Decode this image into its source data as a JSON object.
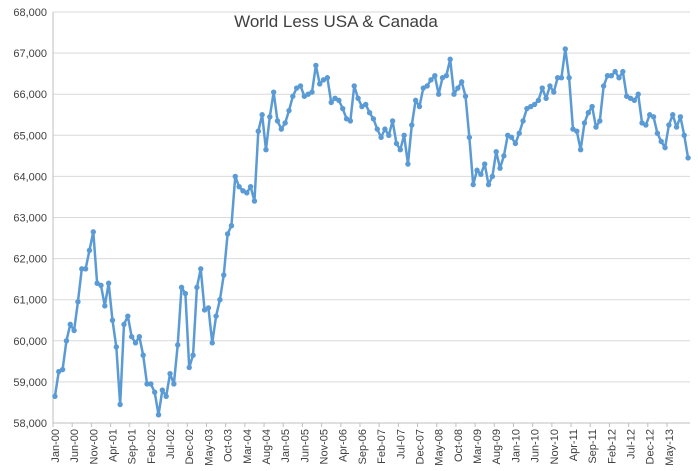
{
  "chart_data": {
    "type": "line",
    "title": "World Less USA & Canada",
    "xlabel": "",
    "ylabel": "",
    "ylim": [
      58000,
      68000
    ],
    "y_ticks": [
      58000,
      59000,
      60000,
      61000,
      62000,
      63000,
      64000,
      65000,
      66000,
      67000,
      68000
    ],
    "y_tick_labels": [
      "58,000",
      "59,000",
      "60,000",
      "61,000",
      "62,000",
      "63,000",
      "64,000",
      "65,000",
      "66,000",
      "67,000",
      "68,000"
    ],
    "x_tick_labels": [
      "Jan-00",
      "Jun-00",
      "Nov-00",
      "Apr-01",
      "Sep-01",
      "Feb-02",
      "Jul-02",
      "Dec-02",
      "May-03",
      "Oct-03",
      "Mar-04",
      "Aug-04",
      "Jan-05",
      "Jun-05",
      "Nov-05",
      "Apr-06",
      "Sep-06",
      "Feb-07",
      "Jul-07",
      "Dec-07",
      "May-08",
      "Oct-08",
      "Mar-09",
      "Aug-09",
      "Jan-10",
      "Jun-10",
      "Nov-10",
      "Apr-11",
      "Sep-11",
      "Feb-12",
      "Jul-12",
      "Dec-12",
      "May-13"
    ],
    "grid": true,
    "series_color": "#5b9bd5",
    "series": [
      {
        "values": [
          58650,
          59250,
          59300,
          60000,
          60400,
          60250,
          60950,
          61750,
          61750,
          62200,
          62650,
          61400,
          61350,
          60850,
          61400,
          60500,
          59850,
          58450,
          60400,
          60600,
          60100,
          59950,
          60100,
          59650,
          58950,
          58950,
          58750,
          58200,
          58800,
          58650,
          59200,
          58950,
          59900,
          61300,
          61150,
          59350,
          59650,
          61300,
          61750,
          60750,
          60800,
          59950,
          60600,
          61000,
          61600,
          62600,
          62800,
          64000,
          63750,
          63650,
          63600,
          63750,
          63400,
          65100,
          65500,
          64650,
          65450,
          66050,
          65350,
          65150,
          65300,
          65600,
          65950,
          66150,
          66200,
          65950,
          66000,
          66050,
          66700,
          66250,
          66350,
          66400,
          65800,
          65900,
          65850,
          65650,
          65400,
          65350,
          66200,
          65900,
          65700,
          65750,
          65550,
          65400,
          65150,
          64950,
          65150,
          65000,
          65350,
          64800,
          64650,
          65000,
          64300,
          65250,
          65850,
          65700,
          66150,
          66200,
          66350,
          66450,
          66000,
          66400,
          66450,
          66850,
          66000,
          66150,
          66300,
          65950,
          64950,
          63800,
          64150,
          64050,
          64300,
          63800,
          64000,
          64600,
          64200,
          64500,
          65000,
          64950,
          64800,
          65050,
          65350,
          65650,
          65700,
          65750,
          65850,
          66150,
          65900,
          66200,
          66050,
          66400,
          66400,
          67100,
          66400,
          65150,
          65100,
          64650,
          65300,
          65550,
          65700,
          65200,
          65350,
          66200,
          66450,
          66450,
          66550,
          66400,
          66550,
          65950,
          65900,
          65850,
          66000,
          65300,
          65250,
          65500,
          65450,
          65050,
          64850,
          64700,
          65250,
          65500,
          65200,
          65450,
          65000,
          64450
        ]
      }
    ]
  }
}
